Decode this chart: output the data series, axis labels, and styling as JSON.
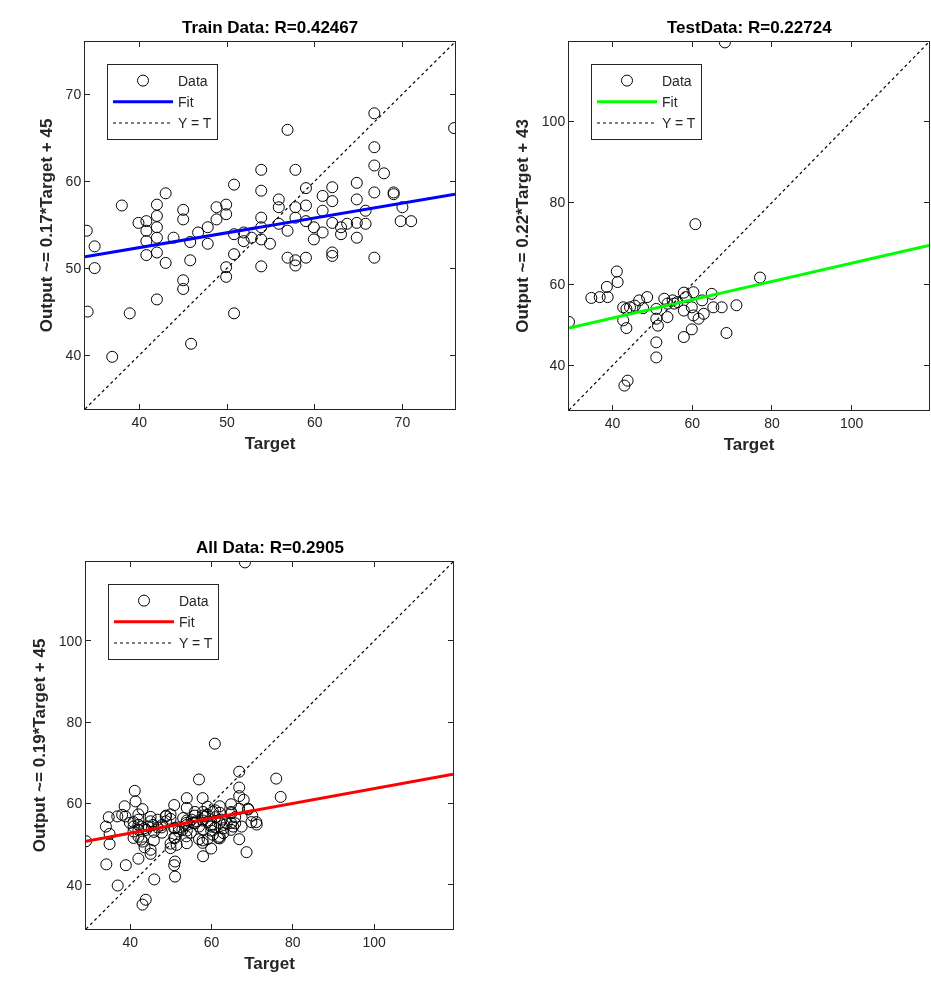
{
  "chart_data": [
    {
      "type": "scatter",
      "title": "Train Data: R=0.42467",
      "xlabel": "Target",
      "ylabel": "Output ~= 0.17*Target + 45",
      "xlim": [
        33.8,
        76
      ],
      "ylim": [
        33.8,
        76
      ],
      "xticks": [
        40,
        50,
        60,
        70
      ],
      "yticks": [
        40,
        50,
        60,
        70
      ],
      "legend": "top left",
      "series": [
        {
          "name": "Data",
          "type": "scatter",
          "marker": "circle",
          "color": "#000000",
          "x": [
            34.0,
            34.9,
            34.9,
            34.1,
            36.9,
            38.9,
            38.0,
            39.9,
            40.8,
            40.8,
            40.8,
            40.8,
            42.0,
            42.0,
            42.0,
            42.0,
            42.0,
            43.0,
            43.0,
            42.0,
            43.9,
            45.0,
            45.0,
            45.0,
            45.0,
            45.8,
            45.8,
            45.9,
            46.7,
            47.8,
            47.8,
            48.8,
            48.8,
            49.9,
            49.9,
            49.9,
            49.9,
            50.8,
            50.8,
            50.8,
            50.8,
            51.9,
            51.9,
            52.8,
            53.9,
            53.9,
            53.9,
            53.9,
            53.9,
            53.9,
            54.9,
            55.9,
            55.9,
            55.9,
            56.9,
            56.9,
            56.9,
            57.8,
            57.8,
            57.8,
            57.8,
            57.8,
            59.0,
            59.0,
            59.0,
            59.0,
            59.9,
            59.9,
            60.9,
            60.9,
            60.9,
            62.0,
            62.0,
            62.0,
            62.0,
            62.0,
            63.0,
            63.0,
            63.7,
            64.8,
            64.8,
            64.8,
            64.8,
            65.8,
            65.8,
            66.8,
            66.8,
            66.8,
            66.8,
            66.8,
            67.9,
            69.0,
            69.0,
            70.0,
            69.8,
            71.0,
            75.9
          ],
          "values": [
            54.3,
            52.5,
            50.0,
            45.0,
            39.8,
            44.8,
            57.2,
            55.2,
            55.4,
            54.3,
            53.1,
            51.5,
            57.3,
            56.0,
            54.7,
            53.5,
            51.8,
            58.6,
            50.6,
            46.4,
            53.5,
            56.7,
            55.6,
            48.6,
            47.6,
            50.9,
            53.0,
            41.3,
            54.1,
            54.7,
            52.8,
            57.0,
            55.6,
            57.3,
            56.2,
            50.1,
            49.0,
            59.6,
            53.9,
            51.6,
            44.8,
            54.1,
            53.1,
            53.5,
            61.3,
            58.9,
            55.8,
            54.7,
            53.3,
            50.2,
            52.8,
            57.9,
            57.0,
            55.1,
            65.9,
            54.3,
            51.2,
            61.3,
            57.0,
            55.8,
            50.9,
            50.3,
            59.2,
            57.2,
            55.4,
            51.2,
            54.7,
            53.3,
            58.3,
            56.6,
            54.1,
            59.3,
            57.7,
            55.2,
            51.8,
            51.4,
            54.7,
            53.9,
            55.1,
            59.8,
            57.9,
            55.2,
            53.5,
            56.6,
            55.1,
            67.8,
            63.9,
            61.8,
            58.7,
            51.2,
            60.9,
            58.7,
            58.5,
            57.0,
            55.4,
            55.4,
            66.1
          ]
        },
        {
          "name": "Fit",
          "type": "line",
          "line_style": "solid",
          "color": "#0000ff",
          "x": [
            33.8,
            76
          ],
          "values": [
            51.3,
            58.5
          ]
        },
        {
          "name": "Y = T",
          "type": "line",
          "line_style": "dotted",
          "color": "#000000",
          "x": [
            33.8,
            76
          ],
          "values": [
            33.8,
            76
          ]
        }
      ]
    },
    {
      "type": "scatter",
      "title": "TestData: R=0.22724",
      "xlabel": "Target",
      "ylabel": "Output ~= 0.22*Target + 43",
      "xlim": [
        29.1,
        119.4
      ],
      "ylim": [
        29.1,
        119.4
      ],
      "xticks": [
        40,
        60,
        80,
        100
      ],
      "yticks": [
        40,
        60,
        80,
        100
      ],
      "legend": "top left",
      "series": [
        {
          "name": "Data",
          "type": "scatter",
          "marker": "circle",
          "color": "#000000",
          "x": [
            68.2,
            60.8,
            77.0,
            29.1,
            41.1,
            41.3,
            38.6,
            34.7,
            36.8,
            38.8,
            42.7,
            43.5,
            44.4,
            42.7,
            43.5,
            46.7,
            48.7,
            47.7,
            51.0,
            51.0,
            51.4,
            53.8,
            51.0,
            51.0,
            53.0,
            55.1,
            56.3,
            57.9,
            58.4,
            57.9,
            60.3,
            57.9,
            59.9,
            59.9,
            60.3,
            61.6,
            62.9,
            62.5,
            64.9,
            65.3,
            67.4,
            71.1,
            68.6,
            43.0,
            43.8,
            45.6,
            53.8,
            55.5
          ],
          "values": [
            119.3,
            74.7,
            61.6,
            50.7,
            63.1,
            60.5,
            59.3,
            56.6,
            56.8,
            56.8,
            54.3,
            53.9,
            54.3,
            51.1,
            49.2,
            56.0,
            56.8,
            54.1,
            53.9,
            51.5,
            49.8,
            51.9,
            45.7,
            42.0,
            56.4,
            56.0,
            55.6,
            57.9,
            56.8,
            53.5,
            58.0,
            47.0,
            48.9,
            54.3,
            52.3,
            51.5,
            52.7,
            56.0,
            57.6,
            54.3,
            54.3,
            54.8,
            48.0,
            35.1,
            36.3,
            54.7,
            55.2,
            55.2
          ]
        },
        {
          "name": "Fit",
          "type": "line",
          "line_style": "solid",
          "color": "#00ff00",
          "x": [
            29.1,
            119.4
          ],
          "values": [
            49.2,
            69.5
          ]
        },
        {
          "name": "Y = T",
          "type": "line",
          "line_style": "dotted",
          "color": "#000000",
          "x": [
            29.1,
            119.4
          ],
          "values": [
            29.1,
            119.4
          ]
        }
      ]
    },
    {
      "type": "scatter",
      "title": "All Data: R=0.2905",
      "xlabel": "Target",
      "ylabel": "Output ~= 0.19*Target + 45",
      "xlim": [
        29.1,
        119.4
      ],
      "ylim": [
        29.1,
        119.4
      ],
      "xticks": [
        40,
        60,
        80,
        100
      ],
      "yticks": [
        40,
        60,
        80,
        100
      ],
      "legend": "top left",
      "series": [
        {
          "name": "Data",
          "type": "scatter",
          "marker": "circle",
          "color": "#000000",
          "x": [
            34.0,
            34.9,
            34.9,
            34.1,
            36.9,
            38.9,
            38.0,
            39.9,
            40.8,
            40.8,
            40.8,
            40.8,
            42.0,
            42.0,
            42.0,
            42.0,
            42.0,
            43.0,
            43.0,
            42.0,
            43.9,
            45.0,
            45.0,
            45.0,
            45.0,
            45.8,
            45.8,
            45.9,
            46.7,
            47.8,
            47.8,
            48.8,
            48.8,
            49.9,
            49.9,
            49.9,
            49.9,
            50.8,
            50.8,
            50.8,
            50.8,
            51.9,
            51.9,
            52.8,
            53.9,
            53.9,
            53.9,
            53.9,
            53.9,
            53.9,
            54.9,
            55.9,
            55.9,
            55.9,
            56.9,
            56.9,
            56.9,
            57.8,
            57.8,
            57.8,
            57.8,
            57.8,
            59.0,
            59.0,
            59.0,
            59.0,
            59.9,
            59.9,
            60.9,
            60.9,
            60.9,
            62.0,
            62.0,
            62.0,
            62.0,
            62.0,
            63.0,
            63.0,
            63.7,
            64.8,
            64.8,
            64.8,
            64.8,
            65.8,
            65.8,
            66.8,
            66.8,
            66.8,
            66.8,
            66.8,
            67.9,
            69.0,
            69.0,
            70.0,
            69.8,
            71.0,
            75.9,
            68.2,
            60.8,
            77.0,
            29.1,
            41.1,
            41.3,
            38.6,
            34.7,
            36.8,
            38.8,
            42.7,
            43.5,
            44.4,
            42.7,
            43.5,
            46.7,
            48.7,
            47.7,
            51.0,
            51.0,
            51.4,
            53.8,
            51.0,
            51.0,
            53.0,
            55.1,
            56.3,
            57.9,
            58.4,
            57.9,
            60.3,
            57.9,
            59.9,
            59.9,
            60.3,
            61.6,
            62.9,
            62.5,
            64.9,
            65.3,
            67.4,
            71.1,
            68.6,
            43.0,
            43.8,
            45.6,
            53.8,
            55.5
          ],
          "values": [
            54.3,
            52.5,
            50.0,
            45.0,
            39.8,
            44.8,
            57.2,
            55.2,
            55.4,
            54.3,
            53.1,
            51.5,
            57.3,
            56.0,
            54.7,
            53.5,
            51.8,
            58.6,
            50.6,
            46.4,
            53.5,
            56.7,
            55.6,
            48.6,
            47.6,
            50.9,
            53.0,
            41.3,
            54.1,
            54.7,
            52.8,
            57.0,
            55.6,
            57.3,
            56.2,
            50.1,
            49.0,
            59.6,
            53.9,
            51.6,
            44.8,
            54.1,
            53.1,
            53.5,
            61.3,
            58.9,
            55.8,
            54.7,
            53.3,
            50.2,
            52.8,
            57.9,
            57.0,
            55.1,
            65.9,
            54.3,
            51.2,
            61.3,
            57.0,
            55.8,
            50.9,
            50.3,
            59.2,
            57.2,
            55.4,
            51.2,
            54.7,
            53.3,
            58.3,
            56.6,
            54.1,
            59.3,
            57.7,
            55.2,
            51.8,
            51.4,
            54.7,
            53.9,
            55.1,
            59.8,
            57.9,
            55.2,
            53.5,
            56.6,
            55.1,
            67.8,
            63.9,
            61.8,
            58.7,
            51.2,
            60.9,
            58.7,
            58.5,
            57.0,
            55.4,
            55.4,
            66.1,
            119.3,
            74.7,
            61.6,
            50.7,
            63.1,
            60.5,
            59.3,
            56.6,
            56.8,
            56.8,
            54.3,
            53.9,
            54.3,
            51.1,
            49.2,
            56.0,
            56.8,
            54.1,
            53.9,
            51.5,
            49.8,
            51.9,
            45.7,
            42.0,
            56.4,
            56.0,
            55.6,
            57.9,
            56.8,
            53.5,
            58.0,
            47.0,
            48.9,
            54.3,
            52.3,
            51.5,
            52.7,
            56.0,
            57.6,
            54.3,
            54.3,
            54.8,
            48.0,
            35.1,
            36.3,
            54.7,
            55.2,
            55.2
          ]
        },
        {
          "name": "Fit",
          "type": "line",
          "line_style": "solid",
          "color": "#ff0000",
          "x": [
            29.1,
            119.4
          ],
          "values": [
            50.7,
            67.2
          ]
        },
        {
          "name": "Y = T",
          "type": "line",
          "line_style": "dotted",
          "color": "#000000",
          "x": [
            29.1,
            119.4
          ],
          "values": [
            29.1,
            119.4
          ]
        }
      ]
    }
  ]
}
